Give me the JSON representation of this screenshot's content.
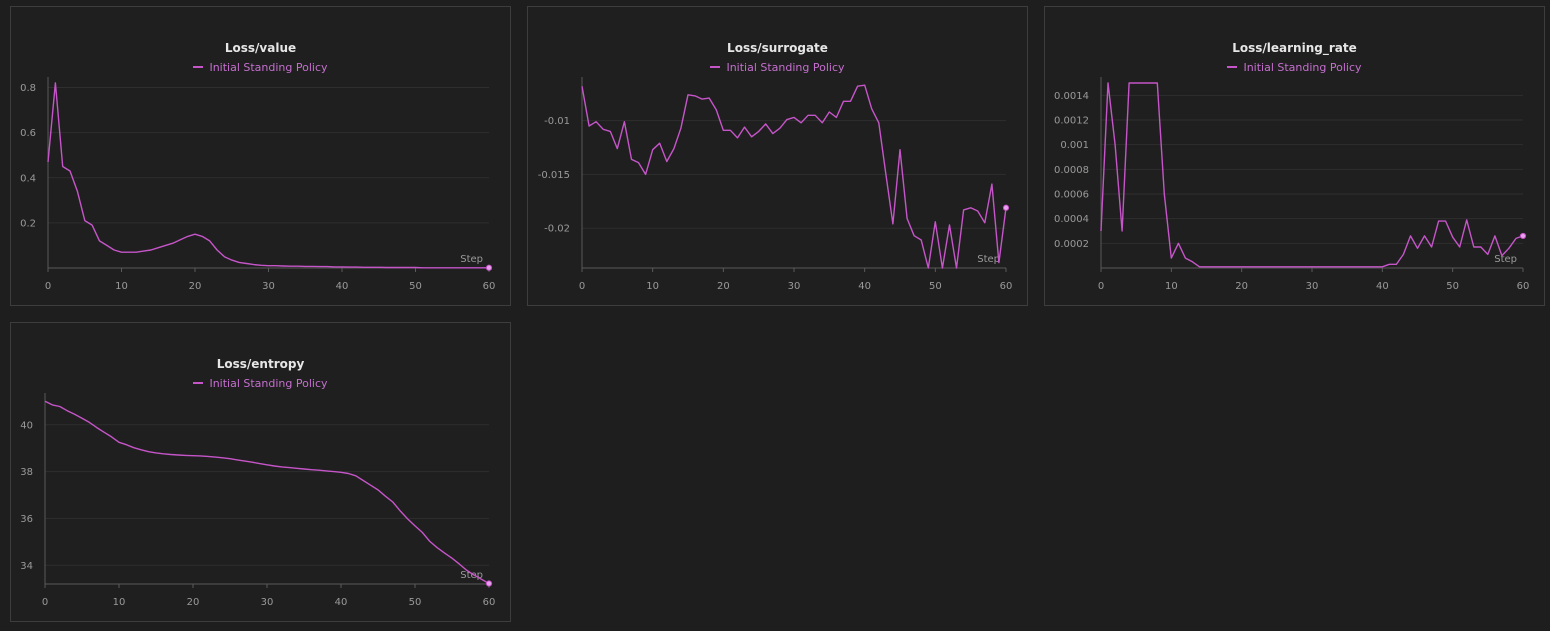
{
  "colors": {
    "background": "#1e1e1e",
    "panel": "#1f1f1f",
    "series": "#c655c9",
    "grid": "#2f2f2f",
    "axis": "#5a5a5a",
    "text": "#9a9a9a"
  },
  "chart_data": [
    {
      "type": "line",
      "title": "Loss/value",
      "xlabel": "Step",
      "ylabel": "",
      "xlim": [
        0,
        60
      ],
      "ylim": [
        0,
        0.82
      ],
      "xticks": [
        0,
        10,
        20,
        30,
        40,
        50,
        60
      ],
      "yticks": [
        0.2,
        0.4,
        0.6,
        0.8
      ],
      "ytick_labels": [
        "0.2",
        "0.4",
        "0.6",
        "0.8"
      ],
      "grid": true,
      "legend": "top-center",
      "series": [
        {
          "name": "Initial Standing Policy",
          "x": [
            0,
            1,
            2,
            3,
            4,
            5,
            6,
            7,
            8,
            9,
            10,
            11,
            12,
            13,
            14,
            15,
            16,
            17,
            18,
            19,
            20,
            21,
            22,
            23,
            24,
            25,
            26,
            27,
            28,
            29,
            30,
            31,
            32,
            33,
            34,
            35,
            36,
            37,
            38,
            39,
            40,
            41,
            42,
            43,
            44,
            45,
            46,
            47,
            48,
            49,
            50,
            51,
            52,
            53,
            54,
            55,
            56,
            57,
            58,
            59,
            60
          ],
          "y": [
            0.47,
            0.82,
            0.45,
            0.43,
            0.34,
            0.21,
            0.19,
            0.12,
            0.1,
            0.08,
            0.07,
            0.07,
            0.07,
            0.075,
            0.08,
            0.09,
            0.1,
            0.11,
            0.125,
            0.14,
            0.15,
            0.14,
            0.12,
            0.08,
            0.05,
            0.035,
            0.025,
            0.02,
            0.015,
            0.012,
            0.01,
            0.01,
            0.009,
            0.008,
            0.008,
            0.007,
            0.007,
            0.006,
            0.006,
            0.005,
            0.005,
            0.004,
            0.004,
            0.003,
            0.003,
            0.003,
            0.002,
            0.002,
            0.002,
            0.002,
            0.002,
            0.001,
            0.001,
            0.001,
            0.001,
            0.001,
            0.001,
            0.001,
            0.001,
            0.001,
            0.001
          ]
        }
      ]
    },
    {
      "type": "line",
      "title": "Loss/surrogate",
      "xlabel": "Step",
      "ylabel": "",
      "xlim": [
        0,
        60
      ],
      "ylim": [
        -0.0237,
        -0.0065
      ],
      "xticks": [
        0,
        10,
        20,
        30,
        40,
        50,
        60
      ],
      "yticks": [
        -0.01,
        -0.015,
        -0.02
      ],
      "ytick_labels": [
        "-0.01",
        "-0.015",
        "-0.02"
      ],
      "grid": true,
      "legend": "top-center",
      "series": [
        {
          "name": "Initial Standing Policy",
          "x": [
            0,
            1,
            2,
            3,
            4,
            5,
            6,
            7,
            8,
            9,
            10,
            11,
            12,
            13,
            14,
            15,
            16,
            17,
            18,
            19,
            20,
            21,
            22,
            23,
            24,
            25,
            26,
            27,
            28,
            29,
            30,
            31,
            32,
            33,
            34,
            35,
            36,
            37,
            38,
            39,
            40,
            41,
            42,
            43,
            44,
            45,
            46,
            47,
            48,
            49,
            50,
            51,
            52,
            53,
            54,
            55,
            56,
            57,
            58,
            59,
            60
          ],
          "y": [
            -0.0068,
            -0.0105,
            -0.0101,
            -0.0108,
            -0.011,
            -0.0126,
            -0.0101,
            -0.0136,
            -0.0139,
            -0.015,
            -0.0127,
            -0.0121,
            -0.0138,
            -0.0126,
            -0.0107,
            -0.0076,
            -0.0077,
            -0.008,
            -0.0079,
            -0.009,
            -0.0109,
            -0.0109,
            -0.0116,
            -0.0106,
            -0.0115,
            -0.011,
            -0.0103,
            -0.0112,
            -0.0107,
            -0.0099,
            -0.0097,
            -0.0102,
            -0.0095,
            -0.0095,
            -0.0102,
            -0.0092,
            -0.0097,
            -0.0082,
            -0.0082,
            -0.0068,
            -0.0067,
            -0.0089,
            -0.0102,
            -0.015,
            -0.0196,
            -0.0127,
            -0.0191,
            -0.0207,
            -0.0211,
            -0.0237,
            -0.0194,
            -0.0237,
            -0.0197,
            -0.0237,
            -0.0183,
            -0.0181,
            -0.0184,
            -0.0195,
            -0.0159,
            -0.0232,
            -0.0181
          ]
        }
      ]
    },
    {
      "type": "line",
      "title": "Loss/learning_rate",
      "xlabel": "Step",
      "ylabel": "",
      "xlim": [
        0,
        60
      ],
      "ylim": [
        0,
        0.0015
      ],
      "xticks": [
        0,
        10,
        20,
        30,
        40,
        50,
        60
      ],
      "yticks": [
        0.0002,
        0.0004,
        0.0006,
        0.0008,
        0.001,
        0.0012,
        0.0014
      ],
      "ytick_labels": [
        "0.0002",
        "0.0004",
        "0.0006",
        "0.0008",
        "0.001",
        "0.0012",
        "0.0014"
      ],
      "grid": true,
      "legend": "top-center",
      "series": [
        {
          "name": "Initial Standing Policy",
          "x": [
            0,
            1,
            2,
            3,
            4,
            5,
            6,
            7,
            8,
            9,
            10,
            11,
            12,
            13,
            14,
            15,
            16,
            17,
            18,
            19,
            20,
            21,
            22,
            23,
            24,
            25,
            26,
            27,
            28,
            29,
            30,
            31,
            32,
            33,
            34,
            35,
            36,
            37,
            38,
            39,
            40,
            41,
            42,
            43,
            44,
            45,
            46,
            47,
            48,
            49,
            50,
            51,
            52,
            53,
            54,
            55,
            56,
            57,
            58,
            59,
            60
          ],
          "y": [
            0.0003,
            0.0015,
            0.001,
            0.0003,
            0.0015,
            0.0015,
            0.0015,
            0.0015,
            0.0015,
            0.0006,
            8e-05,
            0.0002,
            8e-05,
            5e-05,
            1e-05,
            1e-05,
            1e-05,
            1e-05,
            1e-05,
            1e-05,
            1e-05,
            1e-05,
            1e-05,
            1e-05,
            1e-05,
            1e-05,
            1e-05,
            1e-05,
            1e-05,
            1e-05,
            1e-05,
            1e-05,
            1e-05,
            1e-05,
            1e-05,
            1e-05,
            1e-05,
            1e-05,
            1e-05,
            1e-05,
            1e-05,
            3e-05,
            3e-05,
            0.00011,
            0.00026,
            0.00016,
            0.00026,
            0.00017,
            0.00038,
            0.00038,
            0.00025,
            0.00017,
            0.00039,
            0.00017,
            0.00017,
            0.00011,
            0.00026,
            0.0001,
            0.00016,
            0.00024,
            0.00026
          ]
        }
      ]
    },
    {
      "type": "line",
      "title": "Loss/entropy",
      "xlabel": "Step",
      "ylabel": "",
      "xlim": [
        0,
        60
      ],
      "ylim": [
        33.2,
        41.1
      ],
      "xticks": [
        0,
        10,
        20,
        30,
        40,
        50,
        60
      ],
      "yticks": [
        34,
        36,
        38,
        40
      ],
      "ytick_labels": [
        "34",
        "36",
        "38",
        "40"
      ],
      "grid": true,
      "legend": "top-center",
      "series": [
        {
          "name": "Initial Standing Policy",
          "x": [
            0,
            1,
            2,
            3,
            4,
            5,
            6,
            7,
            8,
            9,
            10,
            11,
            12,
            13,
            14,
            15,
            16,
            17,
            18,
            19,
            20,
            21,
            22,
            23,
            24,
            25,
            26,
            27,
            28,
            29,
            30,
            31,
            32,
            33,
            34,
            35,
            36,
            37,
            38,
            39,
            40,
            41,
            42,
            43,
            44,
            45,
            46,
            47,
            48,
            49,
            50,
            51,
            52,
            53,
            54,
            55,
            56,
            57,
            58,
            59,
            60
          ],
          "y": [
            41.0,
            40.85,
            40.78,
            40.6,
            40.45,
            40.28,
            40.1,
            39.88,
            39.68,
            39.48,
            39.25,
            39.15,
            39.02,
            38.93,
            38.85,
            38.8,
            38.76,
            38.73,
            38.71,
            38.69,
            38.68,
            38.67,
            38.65,
            38.62,
            38.59,
            38.55,
            38.5,
            38.45,
            38.4,
            38.34,
            38.29,
            38.24,
            38.2,
            38.17,
            38.14,
            38.11,
            38.08,
            38.06,
            38.03,
            38.0,
            37.97,
            37.92,
            37.82,
            37.62,
            37.42,
            37.22,
            36.95,
            36.7,
            36.32,
            35.98,
            35.68,
            35.4,
            35.02,
            34.75,
            34.52,
            34.3,
            34.05,
            33.78,
            33.58,
            33.4,
            33.22
          ]
        }
      ]
    }
  ]
}
